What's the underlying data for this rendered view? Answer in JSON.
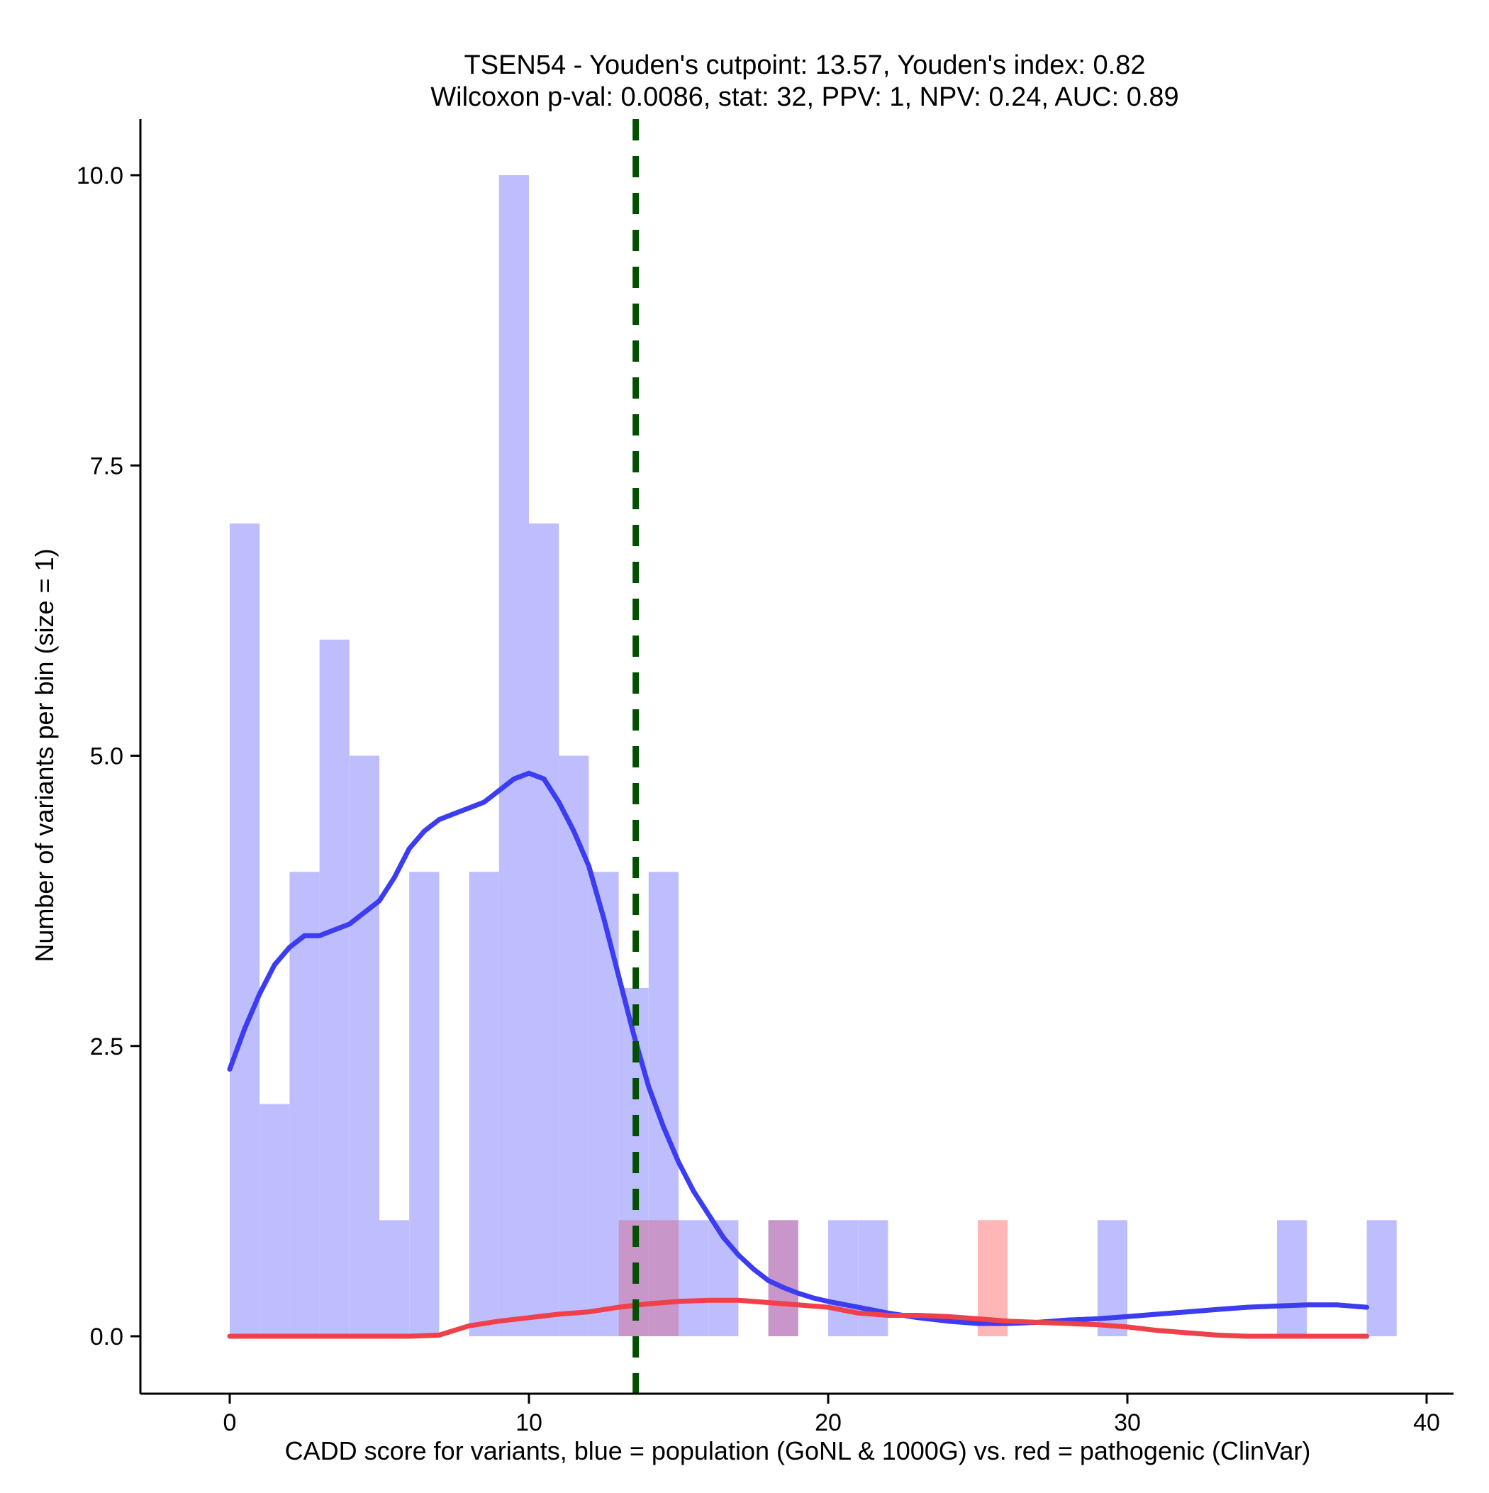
{
  "chart_data": {
    "type": "bar",
    "title_line1": "TSEN54 - Youden's cutpoint: 13.57, Youden's index: 0.82",
    "title_line2": "Wilcoxon p-val: 0.0086, stat: 32, PPV: 1, NPV: 0.24, AUC: 0.89",
    "xlabel": "CADD score for variants, blue = population (GoNL & 1000G) vs. red = pathogenic (ClinVar)",
    "ylabel": "Number of variants per bin (size = 1)",
    "xlim": [
      -3,
      41
    ],
    "ylim": [
      -0.5,
      10.5
    ],
    "x_ticks": [
      0,
      10,
      20,
      30,
      40
    ],
    "y_ticks": [
      0.0,
      2.5,
      5.0,
      7.5,
      10.0
    ],
    "x_tick_labels": [
      "0",
      "10",
      "20",
      "30",
      "40"
    ],
    "y_tick_labels": [
      "0.0",
      "2.5",
      "5.0",
      "7.5",
      "10.0"
    ],
    "bin_size": 1,
    "cutpoint": 13.57,
    "colors": {
      "population_bar": "#BEBEFF",
      "pathogenic_bar": "#FFB6B6",
      "overlap_bar": "#C896C8",
      "population_line": "#3C3CF0",
      "pathogenic_line": "#F0404A",
      "cutpoint_line": "#005000"
    },
    "series": [
      {
        "name": "population (GoNL & 1000G)",
        "bins": [
          {
            "start": 0,
            "count": 7
          },
          {
            "start": 1,
            "count": 2
          },
          {
            "start": 2,
            "count": 4
          },
          {
            "start": 3,
            "count": 6
          },
          {
            "start": 4,
            "count": 5
          },
          {
            "start": 5,
            "count": 1
          },
          {
            "start": 6,
            "count": 4
          },
          {
            "start": 8,
            "count": 4
          },
          {
            "start": 9,
            "count": 10
          },
          {
            "start": 10,
            "count": 7
          },
          {
            "start": 11,
            "count": 5
          },
          {
            "start": 12,
            "count": 4
          },
          {
            "start": 13,
            "count": 3
          },
          {
            "start": 14,
            "count": 4
          },
          {
            "start": 15,
            "count": 1
          },
          {
            "start": 16,
            "count": 1
          },
          {
            "start": 18,
            "count": 1
          },
          {
            "start": 20,
            "count": 1
          },
          {
            "start": 21,
            "count": 1
          },
          {
            "start": 29,
            "count": 1
          },
          {
            "start": 35,
            "count": 1
          },
          {
            "start": 38,
            "count": 1
          }
        ],
        "density_x": [
          0,
          0.5,
          1,
          1.5,
          2,
          2.5,
          3,
          3.5,
          4,
          4.5,
          5,
          5.5,
          6,
          6.5,
          7,
          7.5,
          8,
          8.5,
          9,
          9.5,
          10,
          10.5,
          11,
          11.5,
          12,
          12.5,
          13,
          13.5,
          14,
          14.5,
          15,
          15.5,
          16,
          16.5,
          17,
          17.5,
          18,
          18.5,
          19,
          19.5,
          20,
          21,
          22,
          23,
          24,
          25,
          26,
          27,
          28,
          29,
          30,
          31,
          32,
          33,
          34,
          35,
          36,
          37,
          38
        ],
        "density_y": [
          2.3,
          2.65,
          2.95,
          3.2,
          3.35,
          3.45,
          3.45,
          3.5,
          3.55,
          3.65,
          3.75,
          3.95,
          4.2,
          4.35,
          4.45,
          4.5,
          4.55,
          4.6,
          4.7,
          4.8,
          4.85,
          4.8,
          4.6,
          4.35,
          4.05,
          3.6,
          3.1,
          2.6,
          2.15,
          1.8,
          1.5,
          1.25,
          1.05,
          0.85,
          0.7,
          0.58,
          0.48,
          0.42,
          0.37,
          0.33,
          0.3,
          0.25,
          0.2,
          0.16,
          0.13,
          0.11,
          0.11,
          0.12,
          0.14,
          0.15,
          0.17,
          0.19,
          0.21,
          0.23,
          0.25,
          0.26,
          0.27,
          0.27,
          0.25
        ]
      },
      {
        "name": "pathogenic (ClinVar)",
        "bins": [
          {
            "start": 13,
            "count": 1
          },
          {
            "start": 14,
            "count": 1
          },
          {
            "start": 18,
            "count": 1
          },
          {
            "start": 25,
            "count": 1
          }
        ],
        "density_x": [
          0,
          2,
          4,
          6,
          7,
          7.5,
          8,
          9,
          10,
          11,
          12,
          13,
          14,
          15,
          16,
          17,
          18,
          19,
          20,
          21,
          22,
          23,
          24,
          25,
          26,
          27,
          28,
          29,
          30,
          31,
          32,
          33,
          34,
          35,
          36,
          37,
          38
        ],
        "density_y": [
          0,
          0,
          0,
          0,
          0.01,
          0.05,
          0.09,
          0.13,
          0.16,
          0.19,
          0.21,
          0.25,
          0.28,
          0.3,
          0.31,
          0.31,
          0.29,
          0.27,
          0.25,
          0.2,
          0.18,
          0.18,
          0.17,
          0.15,
          0.13,
          0.12,
          0.11,
          0.1,
          0.08,
          0.05,
          0.03,
          0.01,
          0,
          0,
          0,
          0,
          0
        ]
      }
    ]
  }
}
